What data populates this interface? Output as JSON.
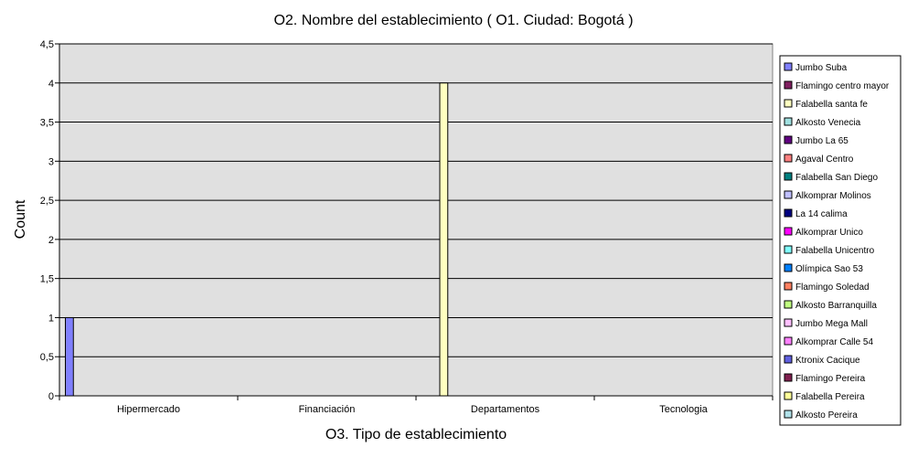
{
  "chart_data": {
    "type": "bar",
    "title": "O2. Nombre del establecimiento ( O1. Ciudad: Bogotá )",
    "xlabel": "O3. Tipo de establecimiento",
    "ylabel": "Count",
    "ylim": [
      0,
      4.5
    ],
    "yticks": [
      "0",
      "0,5",
      "1",
      "1,5",
      "2",
      "2,5",
      "3",
      "3,5",
      "4",
      "4,5"
    ],
    "grid": true,
    "legend_position": "right",
    "categories": [
      "Hipermercado",
      "Financiación",
      "Departamentos",
      "Tecnologia"
    ],
    "series": [
      {
        "name": "Jumbo Suba",
        "color": "#8080ff",
        "values": [
          1,
          0,
          0,
          0
        ]
      },
      {
        "name": "Flamingo centro mayor",
        "color": "#802060",
        "values": [
          0,
          0,
          0,
          0
        ]
      },
      {
        "name": "Falabella santa fe",
        "color": "#ffffc0",
        "values": [
          0,
          0,
          4,
          0
        ]
      },
      {
        "name": "Alkosto Venecia",
        "color": "#a0e0e0",
        "values": [
          0,
          0,
          0,
          0
        ]
      },
      {
        "name": "Jumbo La 65",
        "color": "#600080",
        "values": [
          0,
          0,
          0,
          0
        ]
      },
      {
        "name": "Agaval Centro",
        "color": "#ff8080",
        "values": [
          0,
          0,
          0,
          0
        ]
      },
      {
        "name": "Falabella San Diego",
        "color": "#008080",
        "values": [
          0,
          0,
          0,
          0
        ]
      },
      {
        "name": "Alkomprar Molinos",
        "color": "#c0c0ff",
        "values": [
          0,
          0,
          0,
          0
        ]
      },
      {
        "name": "La 14 calima",
        "color": "#000080",
        "values": [
          0,
          0,
          0,
          0
        ]
      },
      {
        "name": "Alkomprar Unico",
        "color": "#ff00ff",
        "values": [
          0,
          0,
          0,
          0
        ]
      },
      {
        "name": "Falabella Unicentro",
        "color": "#80ffff",
        "values": [
          0,
          0,
          0,
          0
        ]
      },
      {
        "name": "Olímpica Sao 53",
        "color": "#0080ff",
        "values": [
          0,
          0,
          0,
          0
        ]
      },
      {
        "name": "Flamingo Soledad",
        "color": "#ff8060",
        "values": [
          0,
          0,
          0,
          0
        ]
      },
      {
        "name": "Alkosto Barranquilla",
        "color": "#c0ff80",
        "values": [
          0,
          0,
          0,
          0
        ]
      },
      {
        "name": "Jumbo Mega Mall",
        "color": "#ffc0ff",
        "values": [
          0,
          0,
          0,
          0
        ]
      },
      {
        "name": "Alkomprar Calle 54",
        "color": "#ff80ff",
        "values": [
          0,
          0,
          0,
          0
        ]
      },
      {
        "name": "Ktronix Cacique",
        "color": "#6060e0",
        "values": [
          0,
          0,
          0,
          0
        ]
      },
      {
        "name": "Flamingo Pereira",
        "color": "#802050",
        "values": [
          0,
          0,
          0,
          0
        ]
      },
      {
        "name": "Falabella Pereira",
        "color": "#ffff99",
        "values": [
          0,
          0,
          0,
          0
        ]
      },
      {
        "name": "Alkosto Pereira",
        "color": "#b0e0e8",
        "values": [
          0,
          0,
          0,
          0
        ]
      }
    ]
  },
  "colors": {
    "plot_background": "#e0e0e0",
    "gridline": "#000000",
    "axis": "#000000"
  }
}
